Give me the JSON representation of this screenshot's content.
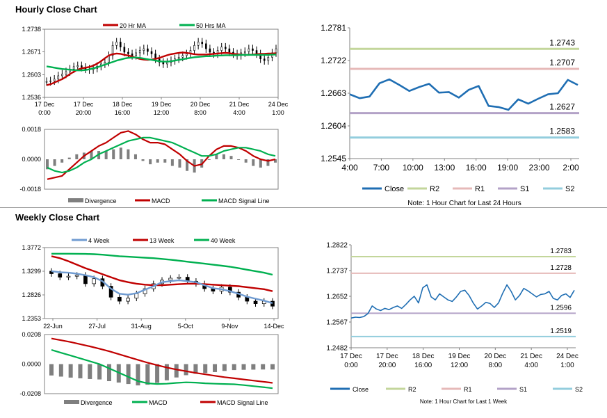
{
  "sections": {
    "hourly": {
      "title": "Hourly Close Chart"
    },
    "weekly": {
      "title": "Weekly Close Chart"
    }
  },
  "colors": {
    "ma_short": "#c00000",
    "ma_long": "#00b050",
    "candle": "#000000",
    "divergence": "#7f7f7f",
    "macd": "#c00000",
    "signal": "#00b050",
    "close": "#1f6eb3",
    "r2": "#c3d69b",
    "r1": "#e6b9b8",
    "s1": "#b3a2c7",
    "s2": "#93cddd",
    "week4": "#6f9bd1",
    "week13": "#c00000",
    "week40": "#00b050"
  },
  "chart_data": [
    {
      "id": "hourly_candles",
      "type": "candlestick",
      "legend": [
        "20 Hr MA",
        "50 Hrs MA"
      ],
      "ylim": [
        1.2536,
        1.2738
      ],
      "yticks": [
        "1.2738",
        "1.2671",
        "1.2603",
        "1.2536"
      ],
      "xticks": [
        [
          "17 Dec",
          "0:00"
        ],
        [
          "17 Dec",
          "20:00"
        ],
        [
          "18 Dec",
          "16:00"
        ],
        [
          "19 Dec",
          "12:00"
        ],
        [
          "20 Dec",
          "8:00"
        ],
        [
          "21 Dec",
          "4:00"
        ],
        [
          "24 Dec",
          "1:00"
        ]
      ],
      "close": [
        1.2583,
        1.2585,
        1.259,
        1.26,
        1.2605,
        1.2612,
        1.262,
        1.2627,
        1.263,
        1.2625,
        1.262,
        1.2618,
        1.2622,
        1.2628,
        1.2635,
        1.264,
        1.266,
        1.269,
        1.27,
        1.2685,
        1.267,
        1.2665,
        1.266,
        1.2668,
        1.2675,
        1.268,
        1.2672,
        1.2665,
        1.265,
        1.264,
        1.2635,
        1.264,
        1.2645,
        1.265,
        1.2655,
        1.266,
        1.2665,
        1.2675,
        1.269,
        1.27,
        1.2695,
        1.268,
        1.267,
        1.2665,
        1.2675,
        1.2685,
        1.268,
        1.267,
        1.2665,
        1.266,
        1.2668,
        1.2672,
        1.268,
        1.2675,
        1.2665,
        1.265,
        1.2645,
        1.2655,
        1.2668,
        1.268
      ],
      "ma20": [
        1.2572,
        1.2575,
        1.258,
        1.2585,
        1.259,
        1.2597,
        1.2605,
        1.2612,
        1.2618,
        1.2622,
        1.2624,
        1.2626,
        1.263,
        1.2636,
        1.2643,
        1.2652,
        1.266,
        1.2664,
        1.2666,
        1.2665,
        1.2662,
        1.266,
        1.2657,
        1.2653,
        1.265,
        1.2648,
        1.2647,
        1.2648,
        1.265,
        1.2653,
        1.2657,
        1.2661,
        1.2664,
        1.2666,
        1.2668,
        1.2669,
        1.2668,
        1.2666,
        1.2664,
        1.2663,
        1.2663,
        1.2663,
        1.2664,
        1.2665,
        1.2666,
        1.2667,
        1.2668,
        1.2667,
        1.2665,
        1.2664,
        1.2663,
        1.2662,
        1.2662,
        1.2663,
        1.2664,
        1.2665,
        1.2665,
        1.2666,
        1.2666,
        1.2667
      ],
      "ma50": [
        1.2628,
        1.2626,
        1.2624,
        1.2622,
        1.262,
        1.2619,
        1.2618,
        1.2617,
        1.2616,
        1.2616,
        1.2617,
        1.2619,
        1.2622,
        1.2625,
        1.2629,
        1.2633,
        1.2637,
        1.2641,
        1.2645,
        1.2648,
        1.2651,
        1.2653,
        1.2654,
        1.2654,
        1.2653,
        1.2651,
        1.2649,
        1.2647,
        1.2645,
        1.2643,
        1.2642,
        1.2642,
        1.2643,
        1.2645,
        1.2647,
        1.2649,
        1.2651,
        1.2653,
        1.2655,
        1.2656,
        1.2657,
        1.2658,
        1.2658,
        1.2659,
        1.266,
        1.266,
        1.2661,
        1.2661,
        1.2661,
        1.2661,
        1.2662,
        1.2662,
        1.2662,
        1.2662,
        1.2662,
        1.2662,
        1.2662,
        1.2662,
        1.2663,
        1.2663
      ]
    },
    {
      "id": "hourly_macd",
      "type": "macd",
      "legend": [
        "Divergence",
        "MACD",
        "MACD Signal Line"
      ],
      "ylim": [
        -0.0018,
        0.0018
      ],
      "yticks": [
        "0.0018",
        "0.0000",
        "-0.0018"
      ],
      "macd": [
        -0.0012,
        -0.0011,
        -0.001,
        -0.0006,
        -0.0002,
        0.0002,
        0.0005,
        0.0008,
        0.001,
        0.0013,
        0.0016,
        0.0017,
        0.0015,
        0.0012,
        0.001,
        0.001,
        0.0009,
        0.0006,
        0.0003,
        -0.0001,
        -0.0004,
        -0.0003,
        0.0002,
        0.0006,
        0.0008,
        0.0008,
        0.0007,
        0.0005,
        0.0002,
        0.0,
        -0.0001,
        0.0
      ],
      "signal": [
        -0.0005,
        -0.0007,
        -0.0008,
        -0.0007,
        -0.0005,
        -0.0002,
        0.0,
        0.0003,
        0.0005,
        0.0007,
        0.0009,
        0.0011,
        0.0012,
        0.0013,
        0.0013,
        0.0012,
        0.0011,
        0.001,
        0.0008,
        0.0006,
        0.0004,
        0.0002,
        0.0002,
        0.0003,
        0.0005,
        0.0006,
        0.0007,
        0.0007,
        0.0006,
        0.0005,
        0.0003,
        0.0002
      ],
      "divergence": [
        -0.0006,
        -0.0004,
        -0.0002,
        0.0001,
        0.0003,
        0.0004,
        0.0005,
        0.0005,
        0.0005,
        0.0006,
        0.0007,
        0.0006,
        0.0003,
        -0.0001,
        -0.0003,
        -0.0002,
        -0.0002,
        -0.0004,
        -0.0005,
        -0.0007,
        -0.0008,
        -0.0005,
        0.0,
        0.0003,
        0.0003,
        0.0002,
        0.0,
        -0.0002,
        -0.0004,
        -0.0005,
        -0.0004,
        -0.0002
      ]
    },
    {
      "id": "hourly_levels",
      "type": "line",
      "ylim": [
        1.2545,
        1.2781
      ],
      "yticks": [
        "1.2781",
        "1.2722",
        "1.2663",
        "1.2604",
        "1.2545"
      ],
      "xticks": [
        "4:00",
        "7:00",
        "10:00",
        "13:00",
        "16:00",
        "19:00",
        "23:00",
        "2:00"
      ],
      "close": [
        1.2661,
        1.2654,
        1.2657,
        1.2681,
        1.2688,
        1.2678,
        1.2667,
        1.2674,
        1.268,
        1.2664,
        1.2665,
        1.2655,
        1.2669,
        1.2676,
        1.264,
        1.2638,
        1.2633,
        1.2652,
        1.2644,
        1.2653,
        1.2661,
        1.2663,
        1.2687,
        1.2678
      ],
      "levels": [
        {
          "name": "R2",
          "value": "1.2743",
          "color_key": "r2"
        },
        {
          "name": "R1",
          "value": "1.2707",
          "color_key": "r1"
        },
        {
          "name": "S1",
          "value": "1.2627",
          "color_key": "s1"
        },
        {
          "name": "S2",
          "value": "1.2583",
          "color_key": "s2"
        }
      ],
      "legend": [
        "Close",
        "R2",
        "R1",
        "S1",
        "S2"
      ],
      "note": "Note: 1 Hour Chart for Last 24 Hours"
    },
    {
      "id": "weekly_candles",
      "type": "candlestick",
      "legend": [
        "4 Week",
        "13 Week",
        "40 Week"
      ],
      "ylim": [
        1.2353,
        1.3772
      ],
      "yticks": [
        "1.3772",
        "1.3299",
        "1.2826",
        "1.2353"
      ],
      "xticks": [
        "22-Jun",
        "27-Jul",
        "31-Aug",
        "5-Oct",
        "9-Nov",
        "14-Dec"
      ],
      "close": [
        1.325,
        1.318,
        1.32,
        1.322,
        1.305,
        1.315,
        1.3,
        1.278,
        1.27,
        1.276,
        1.285,
        1.295,
        1.305,
        1.312,
        1.316,
        1.318,
        1.31,
        1.305,
        1.295,
        1.29,
        1.298,
        1.288,
        1.278,
        1.27,
        1.265,
        1.27,
        1.26
      ],
      "week4": [
        1.33,
        1.328,
        1.327,
        1.325,
        1.322,
        1.318,
        1.31,
        1.295,
        1.285,
        1.283,
        1.286,
        1.293,
        1.3,
        1.308,
        1.31,
        1.312,
        1.31,
        1.308,
        1.302,
        1.296,
        1.294,
        1.29,
        1.285,
        1.279,
        1.275,
        1.271,
        1.266
      ],
      "week13": [
        1.36,
        1.356,
        1.35,
        1.343,
        1.336,
        1.33,
        1.324,
        1.318,
        1.312,
        1.308,
        1.305,
        1.303,
        1.302,
        1.302,
        1.303,
        1.304,
        1.305,
        1.305,
        1.304,
        1.303,
        1.302,
        1.301,
        1.3,
        1.298,
        1.296,
        1.294,
        1.29
      ],
      "week40": [
        1.365,
        1.365,
        1.365,
        1.3648,
        1.3645,
        1.364,
        1.363,
        1.3615,
        1.36,
        1.359,
        1.358,
        1.357,
        1.356,
        1.3545,
        1.353,
        1.351,
        1.349,
        1.347,
        1.345,
        1.343,
        1.341,
        1.339,
        1.336,
        1.333,
        1.33,
        1.327,
        1.323
      ]
    },
    {
      "id": "weekly_macd",
      "type": "macd",
      "legend": [
        "Divergence",
        "MACD",
        "MACD Signal Line"
      ],
      "ylim": [
        -0.0208,
        0.0208
      ],
      "yticks": [
        "0.0208",
        "0.0000",
        "-0.0208"
      ],
      "macd": [
        0.01,
        0.008,
        0.006,
        0.004,
        0.002,
        0.0,
        -0.003,
        -0.006,
        -0.009,
        -0.012,
        -0.0135,
        -0.014,
        -0.0138,
        -0.0132,
        -0.0128,
        -0.013,
        -0.0135,
        -0.0138,
        -0.014,
        -0.0142,
        -0.0148,
        -0.0155,
        -0.0162,
        -0.017
      ],
      "signal": [
        0.018,
        0.0168,
        0.0155,
        0.014,
        0.0125,
        0.0108,
        0.009,
        0.007,
        0.005,
        0.003,
        0.001,
        -0.0008,
        -0.0024,
        -0.0038,
        -0.005,
        -0.0062,
        -0.0072,
        -0.0082,
        -0.0092,
        -0.01,
        -0.0108,
        -0.0116,
        -0.0124,
        -0.0132
      ],
      "divergence": [
        -0.008,
        -0.0088,
        -0.0095,
        -0.01,
        -0.0105,
        -0.0108,
        -0.012,
        -0.013,
        -0.014,
        -0.015,
        -0.0145,
        -0.0132,
        -0.0114,
        -0.0094,
        -0.0078,
        -0.0068,
        -0.0063,
        -0.0056,
        -0.0048,
        -0.0042,
        -0.004,
        -0.0039,
        -0.0038,
        -0.0038
      ]
    },
    {
      "id": "weekly_levels",
      "type": "line",
      "ylim": [
        1.2482,
        1.2822
      ],
      "yticks": [
        "1.2822",
        "1.2737",
        "1.2652",
        "1.2567",
        "1.2482"
      ],
      "xticks": [
        [
          "17 Dec",
          "0:00"
        ],
        [
          "17 Dec",
          "20:00"
        ],
        [
          "18 Dec",
          "16:00"
        ],
        [
          "19 Dec",
          "12:00"
        ],
        [
          "20 Dec",
          "8:00"
        ],
        [
          "21 Dec",
          "4:00"
        ],
        [
          "24 Dec",
          "1:00"
        ]
      ],
      "close": [
        1.258,
        1.2583,
        1.2582,
        1.2585,
        1.2595,
        1.262,
        1.261,
        1.2605,
        1.2612,
        1.2608,
        1.2615,
        1.262,
        1.2612,
        1.2625,
        1.264,
        1.2652,
        1.263,
        1.268,
        1.269,
        1.265,
        1.264,
        1.266,
        1.265,
        1.264,
        1.2635,
        1.265,
        1.2668,
        1.2672,
        1.2655,
        1.263,
        1.261,
        1.262,
        1.2632,
        1.2628,
        1.2615,
        1.263,
        1.2662,
        1.269,
        1.2668,
        1.264,
        1.2655,
        1.2678,
        1.267,
        1.266,
        1.265,
        1.2658,
        1.266,
        1.2668,
        1.2645,
        1.264,
        1.2655,
        1.266,
        1.2648,
        1.2672
      ],
      "levels": [
        {
          "name": "R2",
          "value": "1.2783",
          "color_key": "r2"
        },
        {
          "name": "R1",
          "value": "1.2728",
          "color_key": "r1"
        },
        {
          "name": "S1",
          "value": "1.2596",
          "color_key": "s1"
        },
        {
          "name": "S2",
          "value": "1.2519",
          "color_key": "s2"
        }
      ],
      "legend": [
        "Close",
        "R2",
        "R1",
        "S1",
        "S2"
      ],
      "note": "Note: 1 Hour Chart for Last 1 Week"
    }
  ]
}
